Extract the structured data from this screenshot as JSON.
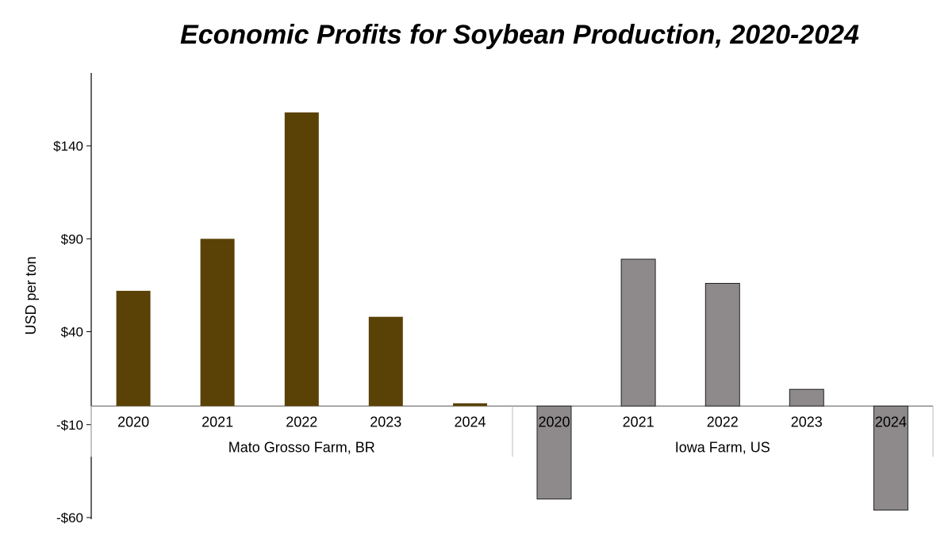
{
  "chart_data": {
    "type": "bar",
    "title": "Economic Profits for Soybean Production, 2020-2024",
    "ylabel": "USD per ton",
    "xlabel": "",
    "ylim": [
      -60,
      180
    ],
    "yticks": [
      -60,
      -10,
      40,
      90,
      140
    ],
    "ytick_labels": [
      "-$60",
      "-$10",
      "$40",
      "$90",
      "$140"
    ],
    "grid": false,
    "groups": [
      {
        "name": "Mato Grosso Farm, BR",
        "color": "#5a4206",
        "categories": [
          "2020",
          "2021",
          "2022",
          "2023",
          "2024"
        ],
        "values": [
          62,
          90,
          158,
          48,
          1.5
        ]
      },
      {
        "name": "Iowa Farm, US",
        "color": "#8e8a8b",
        "categories": [
          "2020",
          "2021",
          "2022",
          "2023",
          "2024"
        ],
        "values": [
          -50,
          79,
          66,
          9,
          -56
        ]
      }
    ]
  }
}
